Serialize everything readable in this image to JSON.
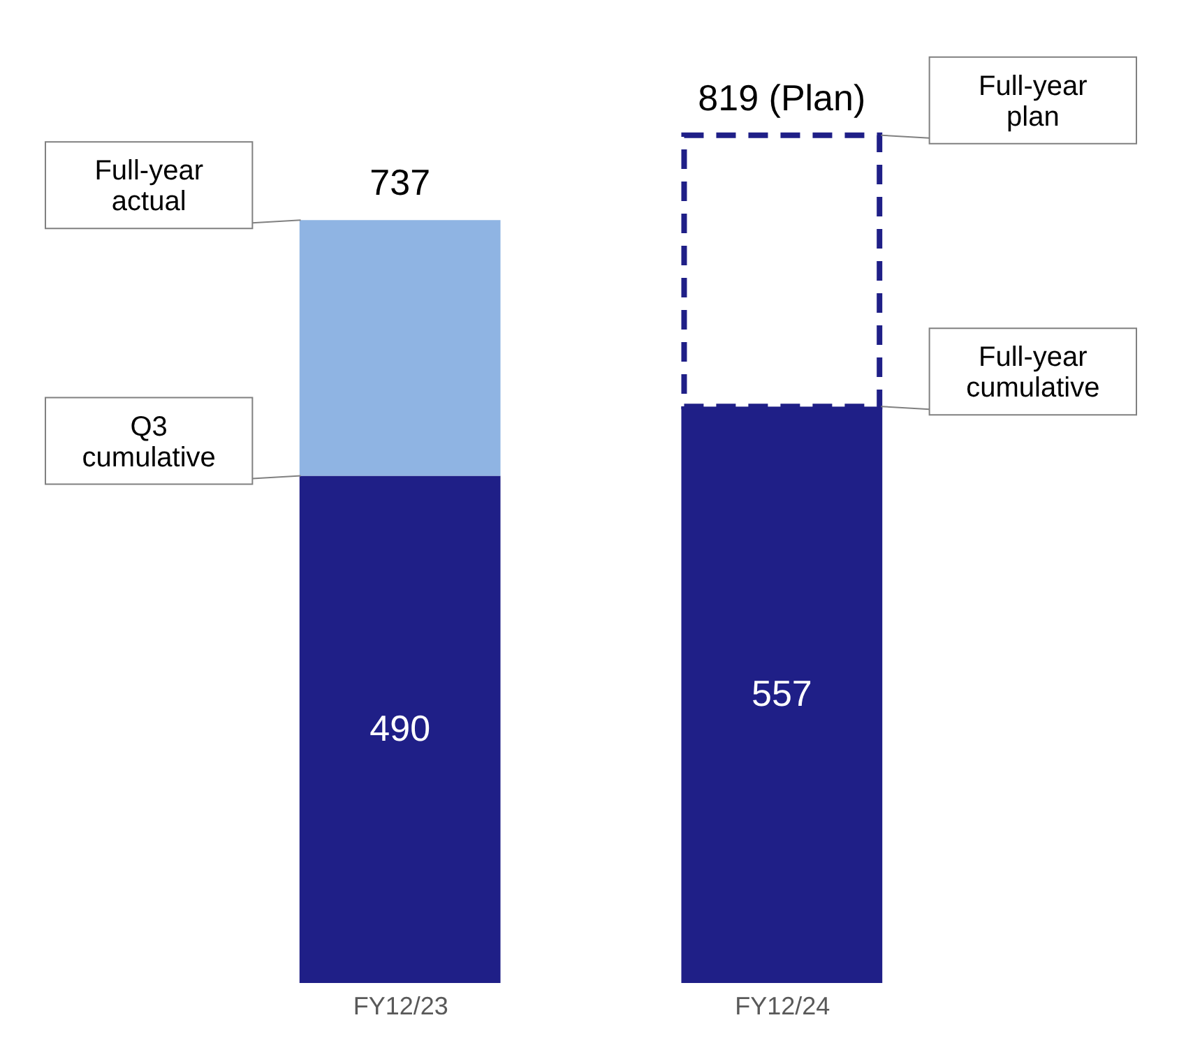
{
  "chart_data": {
    "type": "bar",
    "stacked": true,
    "categories": [
      "FY12/23",
      "FY12/24"
    ],
    "series": [
      {
        "color": "#1f1f87",
        "values": [
          490,
          557
        ],
        "value_labels": [
          "490",
          "557"
        ]
      },
      {
        "color": "#8fb4e3",
        "values": [
          247,
          null
        ]
      },
      {
        "color": "#1f1f87",
        "values": [
          null,
          262
        ],
        "line_style": "dashed"
      }
    ],
    "totals": [
      "737",
      "819 (Plan)"
    ],
    "annotations": [
      "Full-year actual",
      "Q3 cumulative",
      "Full-year plan",
      "Full-year cumulative"
    ],
    "grid": false
  }
}
